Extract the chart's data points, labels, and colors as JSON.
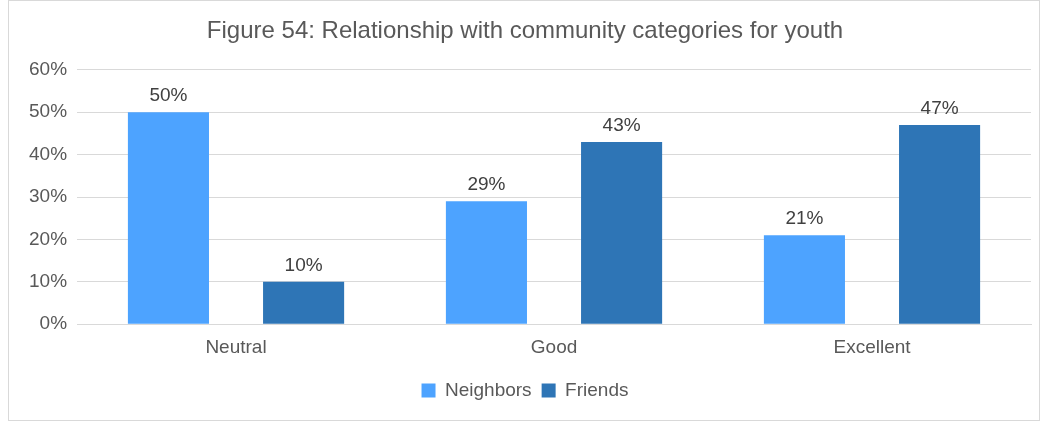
{
  "chart_data": {
    "type": "bar",
    "title": "Figure 54: Relationship with community categories for youth",
    "categories": [
      "Neutral",
      "Good",
      "Excellent"
    ],
    "series": [
      {
        "name": "Neighbors",
        "color": "#4da3ff",
        "values": [
          50,
          29,
          21
        ],
        "value_labels": [
          "50%",
          "29%",
          "21%"
        ]
      },
      {
        "name": "Friends",
        "color": "#2e75b6",
        "values": [
          10,
          43,
          47
        ],
        "value_labels": [
          "10%",
          "43%",
          "47%"
        ]
      }
    ],
    "ylim": [
      0,
      60
    ],
    "yticks": [
      {
        "value": 0,
        "label": "0%"
      },
      {
        "value": 10,
        "label": "10%"
      },
      {
        "value": 20,
        "label": "20%"
      },
      {
        "value": 30,
        "label": "30%"
      },
      {
        "value": 40,
        "label": "40%"
      },
      {
        "value": 50,
        "label": "50%"
      },
      {
        "value": 60,
        "label": "60%"
      }
    ],
    "grid": "y",
    "legend": "bottom"
  }
}
